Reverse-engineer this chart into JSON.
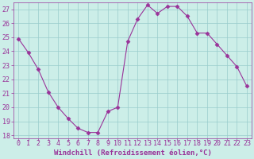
{
  "x": [
    0,
    1,
    2,
    3,
    4,
    5,
    6,
    7,
    8,
    9,
    10,
    11,
    12,
    13,
    14,
    15,
    16,
    17,
    18,
    19,
    20,
    21,
    22,
    23
  ],
  "y": [
    24.9,
    23.9,
    22.7,
    21.1,
    20.0,
    19.2,
    18.5,
    18.2,
    18.2,
    19.7,
    20.0,
    24.7,
    26.3,
    27.3,
    26.7,
    27.2,
    27.2,
    26.5,
    25.3,
    25.3,
    24.5,
    23.7,
    22.9,
    21.5
  ],
  "line_color": "#993399",
  "marker": "D",
  "marker_size": 2.5,
  "bg_color": "#cceee8",
  "grid_color": "#99cccc",
  "xlabel": "Windchill (Refroidissement éolien,°C)",
  "xlabel_color": "#993399",
  "tick_color": "#993399",
  "spine_color": "#993399",
  "ylim": [
    17.8,
    27.5
  ],
  "xlim": [
    -0.5,
    23.5
  ],
  "yticks": [
    18,
    19,
    20,
    21,
    22,
    23,
    24,
    25,
    26,
    27
  ],
  "xticks": [
    0,
    1,
    2,
    3,
    4,
    5,
    6,
    7,
    8,
    9,
    10,
    11,
    12,
    13,
    14,
    15,
    16,
    17,
    18,
    19,
    20,
    21,
    22,
    23
  ],
  "tick_fontsize": 6,
  "xlabel_fontsize": 6.5
}
